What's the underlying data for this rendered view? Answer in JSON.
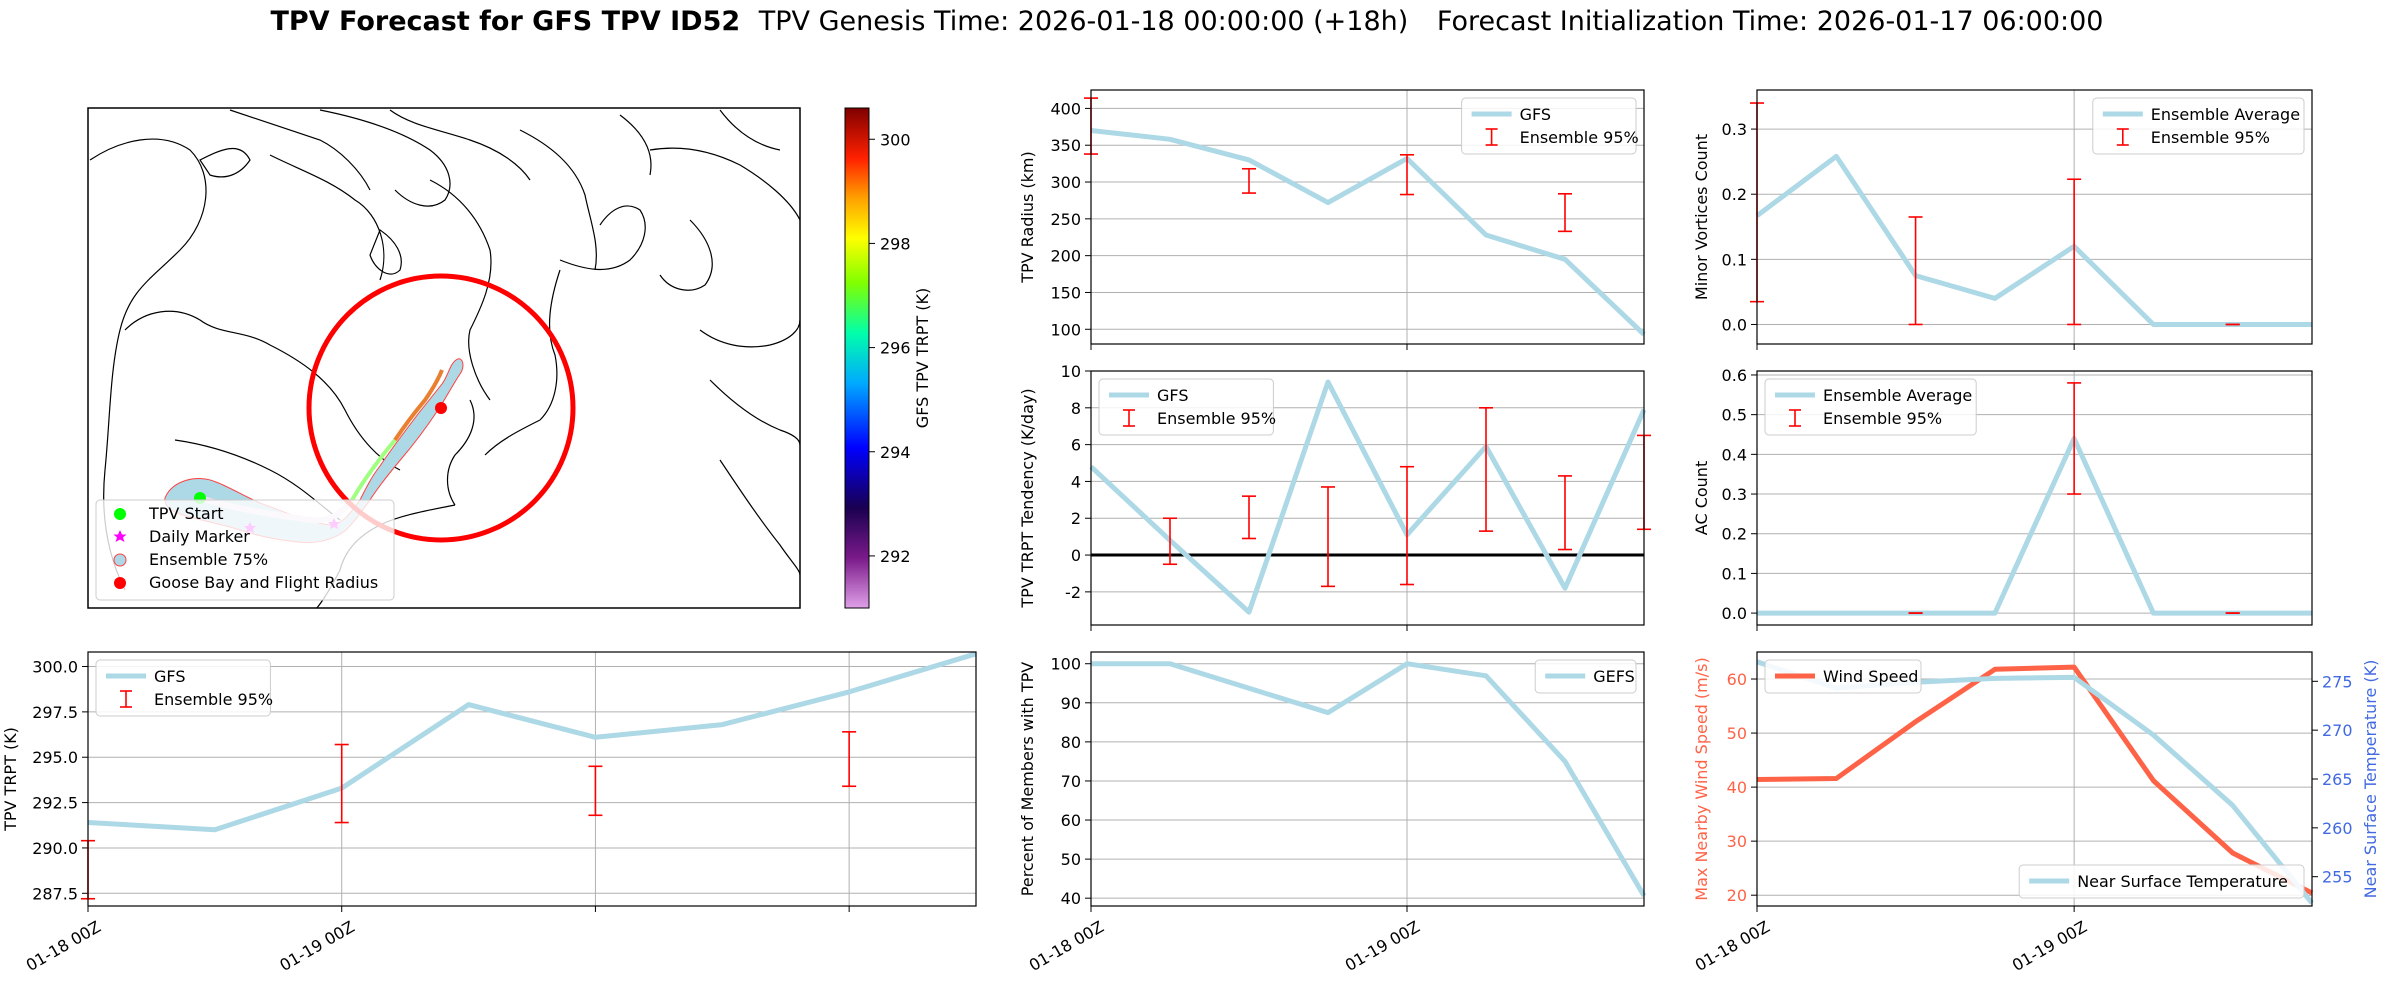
{
  "header": {
    "main_title": "TPV Forecast for GFS TPV ID52",
    "genesis": "TPV Genesis Time: 2026-01-18 00:00:00 (+18h)",
    "init": "Forecast Initialization Time: 2026-01-17 06:00:00"
  },
  "colors": {
    "gfs_line": "#add8e6",
    "error_bar": "#ff0000",
    "wind_line": "#ff6347",
    "temp_axis": "#4169e1",
    "radius_circle": "#ff0000",
    "tpv_start": "#00ff00",
    "daily_marker": "#ff00ff",
    "goose_bay": "#ff0000"
  },
  "map": {
    "legend": [
      {
        "key": "tpv_start",
        "label": "TPV Start"
      },
      {
        "key": "daily_marker",
        "label": "Daily Marker"
      },
      {
        "key": "ensemble",
        "label": "Ensemble 75%"
      },
      {
        "key": "goose_bay",
        "label": "Goose Bay and Flight Radius"
      }
    ],
    "colorbar": {
      "label": "GFS TPV TRPT (K)",
      "ticks": [
        "300",
        "298",
        "296",
        "294",
        "292"
      ],
      "min": 291,
      "max": 300.6
    }
  },
  "chart_data": [
    {
      "id": "trpt",
      "type": "line",
      "ylabel": "TPV TRPT (K)",
      "ylim": [
        286.8,
        300.8
      ],
      "yticks": [
        "287.5",
        "290.0",
        "292.5",
        "295.0",
        "297.5",
        "300.0"
      ],
      "xticks": [
        "01-18 00Z",
        "01-19 00Z"
      ],
      "legend": [
        "GFS",
        "Ensemble 95%"
      ],
      "legend_loc": "upper-left",
      "series": [
        {
          "name": "GFS",
          "x": [
            0,
            0.5,
            1,
            1.5,
            2,
            2.5,
            3,
            3.5
          ],
          "values": [
            291.4,
            291.0,
            293.3,
            297.9,
            296.1,
            296.8,
            298.6,
            300.7
          ]
        }
      ],
      "errorbars": [
        {
          "x": 1,
          "low": 291.4,
          "high": 295.7
        },
        {
          "x": 2,
          "low": 291.8,
          "high": 294.5
        },
        {
          "x": 3,
          "low": 293.4,
          "high": 296.4
        },
        {
          "x": 0,
          "low": 287.2,
          "high": 290.4
        }
      ]
    },
    {
      "id": "radius",
      "type": "line",
      "ylabel": "TPV Radius (km)",
      "ylim": [
        80,
        425
      ],
      "yticks": [
        "100",
        "150",
        "200",
        "250",
        "300",
        "350",
        "400"
      ],
      "xticks": [],
      "legend": [
        "GFS",
        "Ensemble 95%"
      ],
      "legend_loc": "upper-right",
      "series": [
        {
          "name": "GFS",
          "x": [
            0,
            0.25,
            0.5,
            0.75,
            1,
            1.25,
            1.5,
            1.75
          ],
          "values": [
            370,
            358,
            330,
            272,
            332,
            228,
            195,
            93
          ]
        }
      ],
      "errorbars": [
        {
          "x": 0.5,
          "low": 285,
          "high": 318
        },
        {
          "x": 1,
          "low": 283,
          "high": 337
        },
        {
          "x": 1.5,
          "low": 233,
          "high": 284
        },
        {
          "x": 0,
          "low": 338,
          "high": 414
        }
      ]
    },
    {
      "id": "tendency",
      "type": "line",
      "ylabel": "TPV TRPT Tendency (K/day)",
      "ylim": [
        -3.8,
        10
      ],
      "yticks": [
        "-2",
        "0",
        "2",
        "4",
        "6",
        "8",
        "10"
      ],
      "xticks": [],
      "legend": [
        "GFS",
        "Ensemble 95%"
      ],
      "legend_loc": "upper-left",
      "zero_line": true,
      "series": [
        {
          "name": "GFS",
          "x": [
            0,
            0.25,
            0.5,
            0.75,
            1,
            1.25,
            1.5,
            1.75
          ],
          "values": [
            4.8,
            0.8,
            -3.1,
            9.4,
            1.1,
            5.9,
            -1.8,
            7.9
          ]
        }
      ],
      "errorbars": [
        {
          "x": 0.25,
          "low": -0.5,
          "high": 2.0
        },
        {
          "x": 0.5,
          "low": 0.9,
          "high": 3.2
        },
        {
          "x": 0.75,
          "low": -1.7,
          "high": 3.7
        },
        {
          "x": 1,
          "low": -1.6,
          "high": 4.8
        },
        {
          "x": 1.25,
          "low": 1.3,
          "high": 8.0
        },
        {
          "x": 1.5,
          "low": 0.3,
          "high": 4.3
        },
        {
          "x": 1.75,
          "low": 1.4,
          "high": 6.5
        }
      ]
    },
    {
      "id": "members",
      "type": "line",
      "ylabel": "Percent of Members with TPV",
      "ylim": [
        38,
        103
      ],
      "yticks": [
        "40",
        "50",
        "60",
        "70",
        "80",
        "90",
        "100"
      ],
      "xticks": [
        "01-18 00Z",
        "01-19 00Z"
      ],
      "legend": [
        "GEFS"
      ],
      "legend_loc": "upper-right",
      "series": [
        {
          "name": "GEFS",
          "x": [
            0,
            0.25,
            0.5,
            0.75,
            1,
            1.25,
            1.5,
            1.75
          ],
          "values": [
            100,
            100,
            93.7,
            87.5,
            100,
            96.9,
            75,
            40.6
          ]
        }
      ]
    },
    {
      "id": "minor_vortices",
      "type": "line",
      "ylabel": "Minor Vortices Count",
      "ylim": [
        -0.03,
        0.36
      ],
      "yticks": [
        "0.0",
        "0.1",
        "0.2",
        "0.3"
      ],
      "xticks": [],
      "legend": [
        "Ensemble Average",
        "Ensemble 95%"
      ],
      "legend_loc": "upper-right",
      "series": [
        {
          "name": "Ensemble Average",
          "x": [
            0,
            0.25,
            0.5,
            0.75,
            1,
            1.25,
            1.5,
            1.75
          ],
          "values": [
            0.167,
            0.258,
            0.075,
            0.04,
            0.12,
            0,
            0,
            0
          ]
        }
      ],
      "errorbars": [
        {
          "x": 0.5,
          "low": 0,
          "high": 0.165
        },
        {
          "x": 1,
          "low": 0,
          "high": 0.223
        },
        {
          "x": 1.5,
          "low": 0,
          "high": 0
        },
        {
          "x": 0,
          "low": 0.035,
          "high": 0.34
        }
      ]
    },
    {
      "id": "ac_count",
      "type": "line",
      "ylabel": "AC Count",
      "ylim": [
        -0.03,
        0.61
      ],
      "yticks": [
        "0.0",
        "0.1",
        "0.2",
        "0.3",
        "0.4",
        "0.5",
        "0.6"
      ],
      "xticks": [],
      "legend": [
        "Ensemble Average",
        "Ensemble 95%"
      ],
      "legend_loc": "upper-left",
      "series": [
        {
          "name": "Ensemble Average",
          "x": [
            0,
            0.25,
            0.5,
            0.75,
            1,
            1.25,
            1.5,
            1.75
          ],
          "values": [
            0,
            0,
            0,
            0,
            0.44,
            0,
            0,
            0
          ]
        }
      ],
      "errorbars": [
        {
          "x": 0.5,
          "low": 0,
          "high": 0
        },
        {
          "x": 1,
          "low": 0.3,
          "high": 0.58
        },
        {
          "x": 1.5,
          "low": 0,
          "high": 0
        }
      ]
    },
    {
      "id": "wind",
      "type": "line",
      "ylabel": "Max Nearby Wind Speed (m/s)",
      "ylabel2": "Near Surface Temperature (K)",
      "ylim": [
        18,
        65
      ],
      "ylim2": [
        252,
        278
      ],
      "yticks": [
        "20",
        "30",
        "40",
        "50",
        "60"
      ],
      "yticks2": [
        "255",
        "260",
        "265",
        "270",
        "275"
      ],
      "xticks": [
        "01-18 00Z",
        "01-19 00Z"
      ],
      "legend": [
        "Wind Speed"
      ],
      "legend2": [
        "Near Surface Temperature"
      ],
      "series": [
        {
          "name": "Wind Speed",
          "axis": "left",
          "x": [
            0,
            0.25,
            0.5,
            0.75,
            1,
            1.25,
            1.5,
            1.75
          ],
          "values": [
            41.4,
            41.6,
            52.1,
            61.8,
            62.2,
            41.2,
            27.8,
            20.4
          ]
        },
        {
          "name": "Near Surface Temperature",
          "axis": "right",
          "x": [
            0,
            0.25,
            0.5,
            0.75,
            1,
            1.25,
            1.5,
            1.75
          ],
          "values": [
            277,
            274.3,
            274.9,
            275.3,
            275.4,
            269.5,
            262.3,
            252.3
          ]
        }
      ]
    }
  ]
}
